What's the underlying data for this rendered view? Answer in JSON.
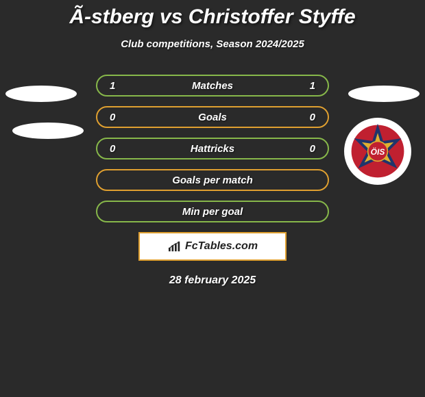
{
  "title": "Ã-stberg vs Christoffer Styffe",
  "subtitle": "Club competitions, Season 2024/2025",
  "rows": [
    {
      "label": "Matches",
      "left": "1",
      "right": "1",
      "border": "#87b84a"
    },
    {
      "label": "Goals",
      "left": "0",
      "right": "0",
      "border": "#e0a030"
    },
    {
      "label": "Hattricks",
      "left": "0",
      "right": "0",
      "border": "#87b84a"
    },
    {
      "label": "Goals per match",
      "left": "",
      "right": "",
      "border": "#e0a030"
    },
    {
      "label": "Min per goal",
      "left": "",
      "right": "",
      "border": "#87b84a"
    }
  ],
  "branding": {
    "text": "FcTables.com"
  },
  "date": "28 february 2025",
  "colors": {
    "bg": "#2a2a2a",
    "text": "#ffffff",
    "box_border": "#e0a030",
    "box_bg": "#ffffff"
  },
  "badge": {
    "outer": "#c02030",
    "star_fill": "#e0b030",
    "star_border": "#20356b",
    "center": "#c02030",
    "center_text": "ÖIS"
  }
}
